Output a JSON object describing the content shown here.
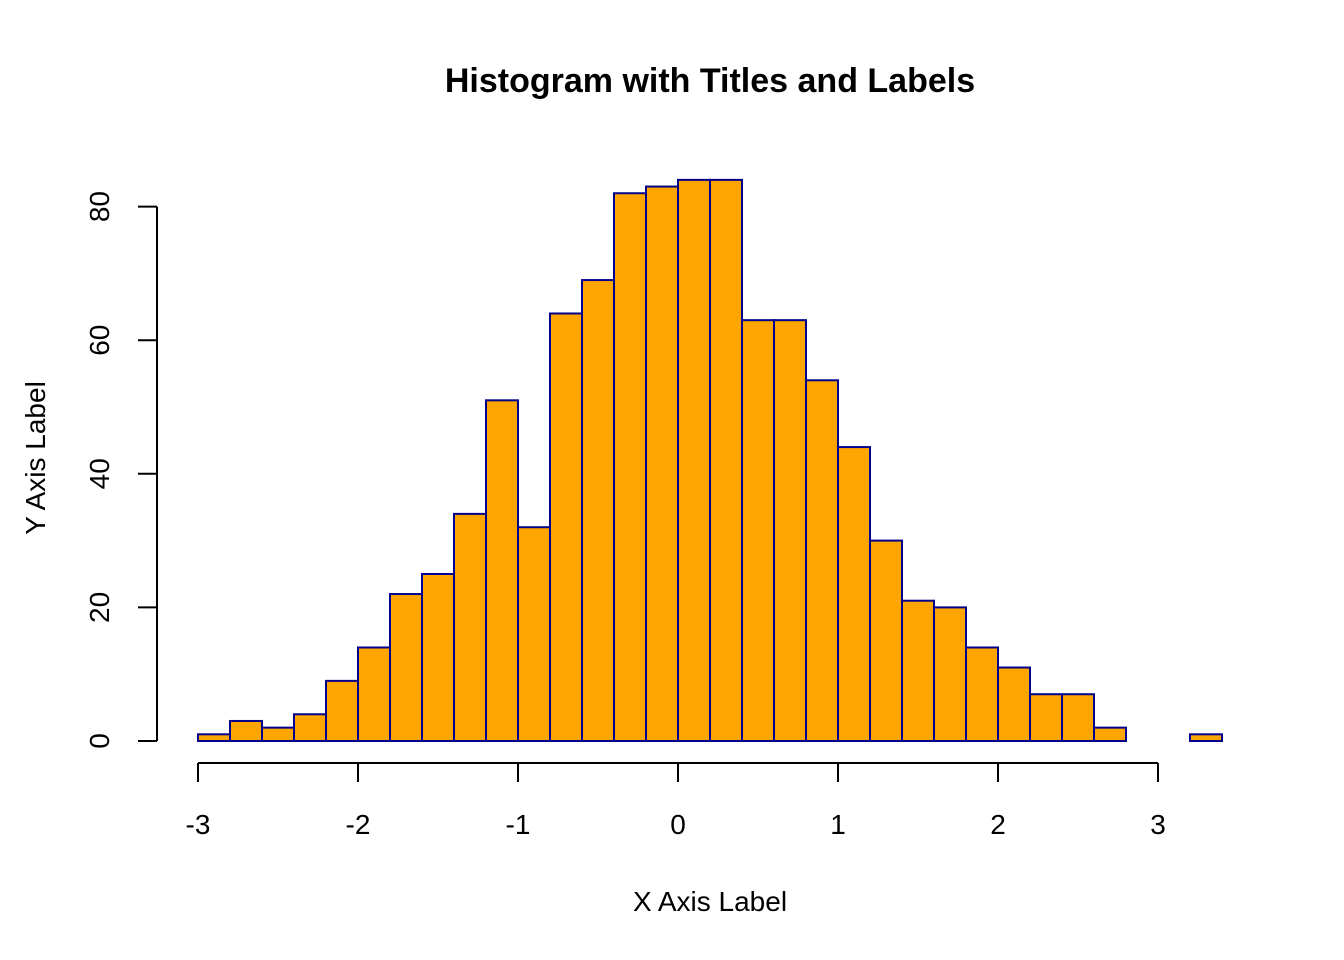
{
  "chart_data": {
    "type": "bar",
    "title": "Histogram with Titles and Labels",
    "xlabel": "X Axis Label",
    "ylabel": "Y Axis Label",
    "bin_edges": [
      -3.0,
      -2.8,
      -2.6,
      -2.4,
      -2.2,
      -2.0,
      -1.8,
      -1.6,
      -1.4,
      -1.2,
      -1.0,
      -0.8,
      -0.6,
      -0.4,
      -0.2,
      0.0,
      0.2,
      0.4,
      0.6,
      0.8,
      1.0,
      1.2,
      1.4,
      1.6,
      1.8,
      2.0,
      2.2,
      2.4,
      2.6,
      2.8,
      3.0,
      3.2,
      3.4
    ],
    "values": [
      1,
      3,
      2,
      4,
      9,
      14,
      22,
      25,
      34,
      51,
      32,
      64,
      69,
      82,
      83,
      84,
      84,
      63,
      63,
      54,
      44,
      30,
      21,
      20,
      14,
      11,
      7,
      7,
      2,
      0,
      0,
      1
    ],
    "xlim": [
      -3,
      3.4
    ],
    "ylim": [
      0,
      84
    ],
    "xticks": [
      -3,
      -2,
      -1,
      0,
      1,
      2,
      3
    ],
    "yticks": [
      0,
      20,
      40,
      60,
      80
    ],
    "xtick_labels": [
      "-3",
      "-2",
      "-1",
      "0",
      "1",
      "2",
      "3"
    ],
    "ytick_labels": [
      "0",
      "20",
      "40",
      "60",
      "80"
    ],
    "bar_fill": "#FFA500",
    "bar_border": "#00008B",
    "grid": false
  }
}
